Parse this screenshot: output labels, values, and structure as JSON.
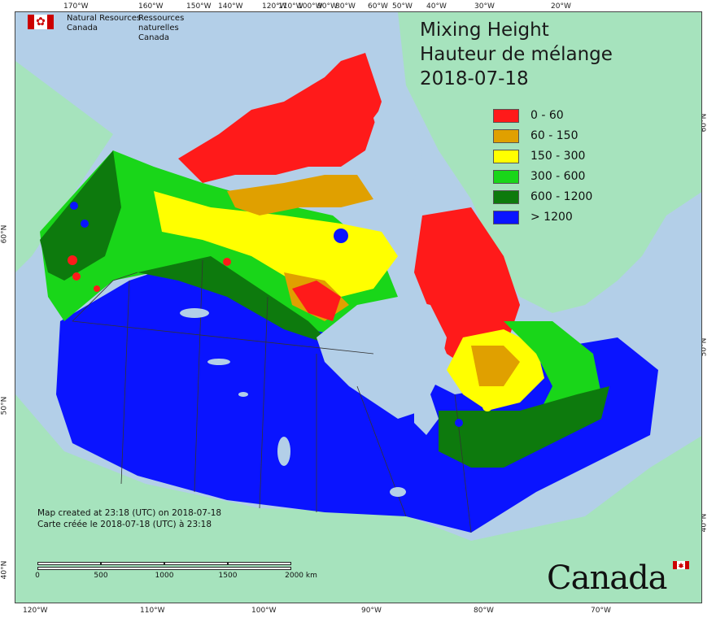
{
  "agency": {
    "name_en_line1": "Natural Resources",
    "name_en_line2": "Canada",
    "name_fr_line1": "Ressources naturelles",
    "name_fr_line2": "Canada"
  },
  "title": {
    "en": "Mixing Height",
    "fr": "Hauteur de mélange",
    "date": "2018-07-18"
  },
  "legend": [
    {
      "label": "0 - 60",
      "color": "#ff1a1a"
    },
    {
      "label": "60 - 150",
      "color": "#e0a000"
    },
    {
      "label": "150 - 300",
      "color": "#ffff00"
    },
    {
      "label": "300 - 600",
      "color": "#19d619"
    },
    {
      "label": "600 - 1200",
      "color": "#0d7a0d"
    },
    {
      "label": "> 1200",
      "color": "#0a14ff"
    }
  ],
  "created": {
    "en": "Map created at 23:18 (UTC) on 2018-07-18",
    "fr": "Carte créée le 2018-07-18 (UTC) à 23:18"
  },
  "scale": {
    "labels": [
      "0",
      "500",
      "1000",
      "1500",
      "2000 km"
    ]
  },
  "graticule": {
    "top": [
      "170°W",
      "160°W",
      "150°W",
      "140°W",
      "120°W",
      "110°W",
      "100°W",
      "90°W",
      "80°W",
      "60°W",
      "50°W",
      "40°W",
      "30°W",
      "20°W"
    ],
    "bottom": [
      "120°W",
      "110°W",
      "100°W",
      "90°W",
      "80°W",
      "70°W"
    ],
    "left": [
      "60°N",
      "50°N",
      "40°N"
    ],
    "right": [
      "60°N",
      "50°N",
      "40°N"
    ]
  },
  "wordmark": "Canada",
  "colors": {
    "water": "#b3cfe8",
    "foreign_land": "#a6e3bd",
    "greenland": "#a6e3bd",
    "boundaries": "#333333"
  }
}
